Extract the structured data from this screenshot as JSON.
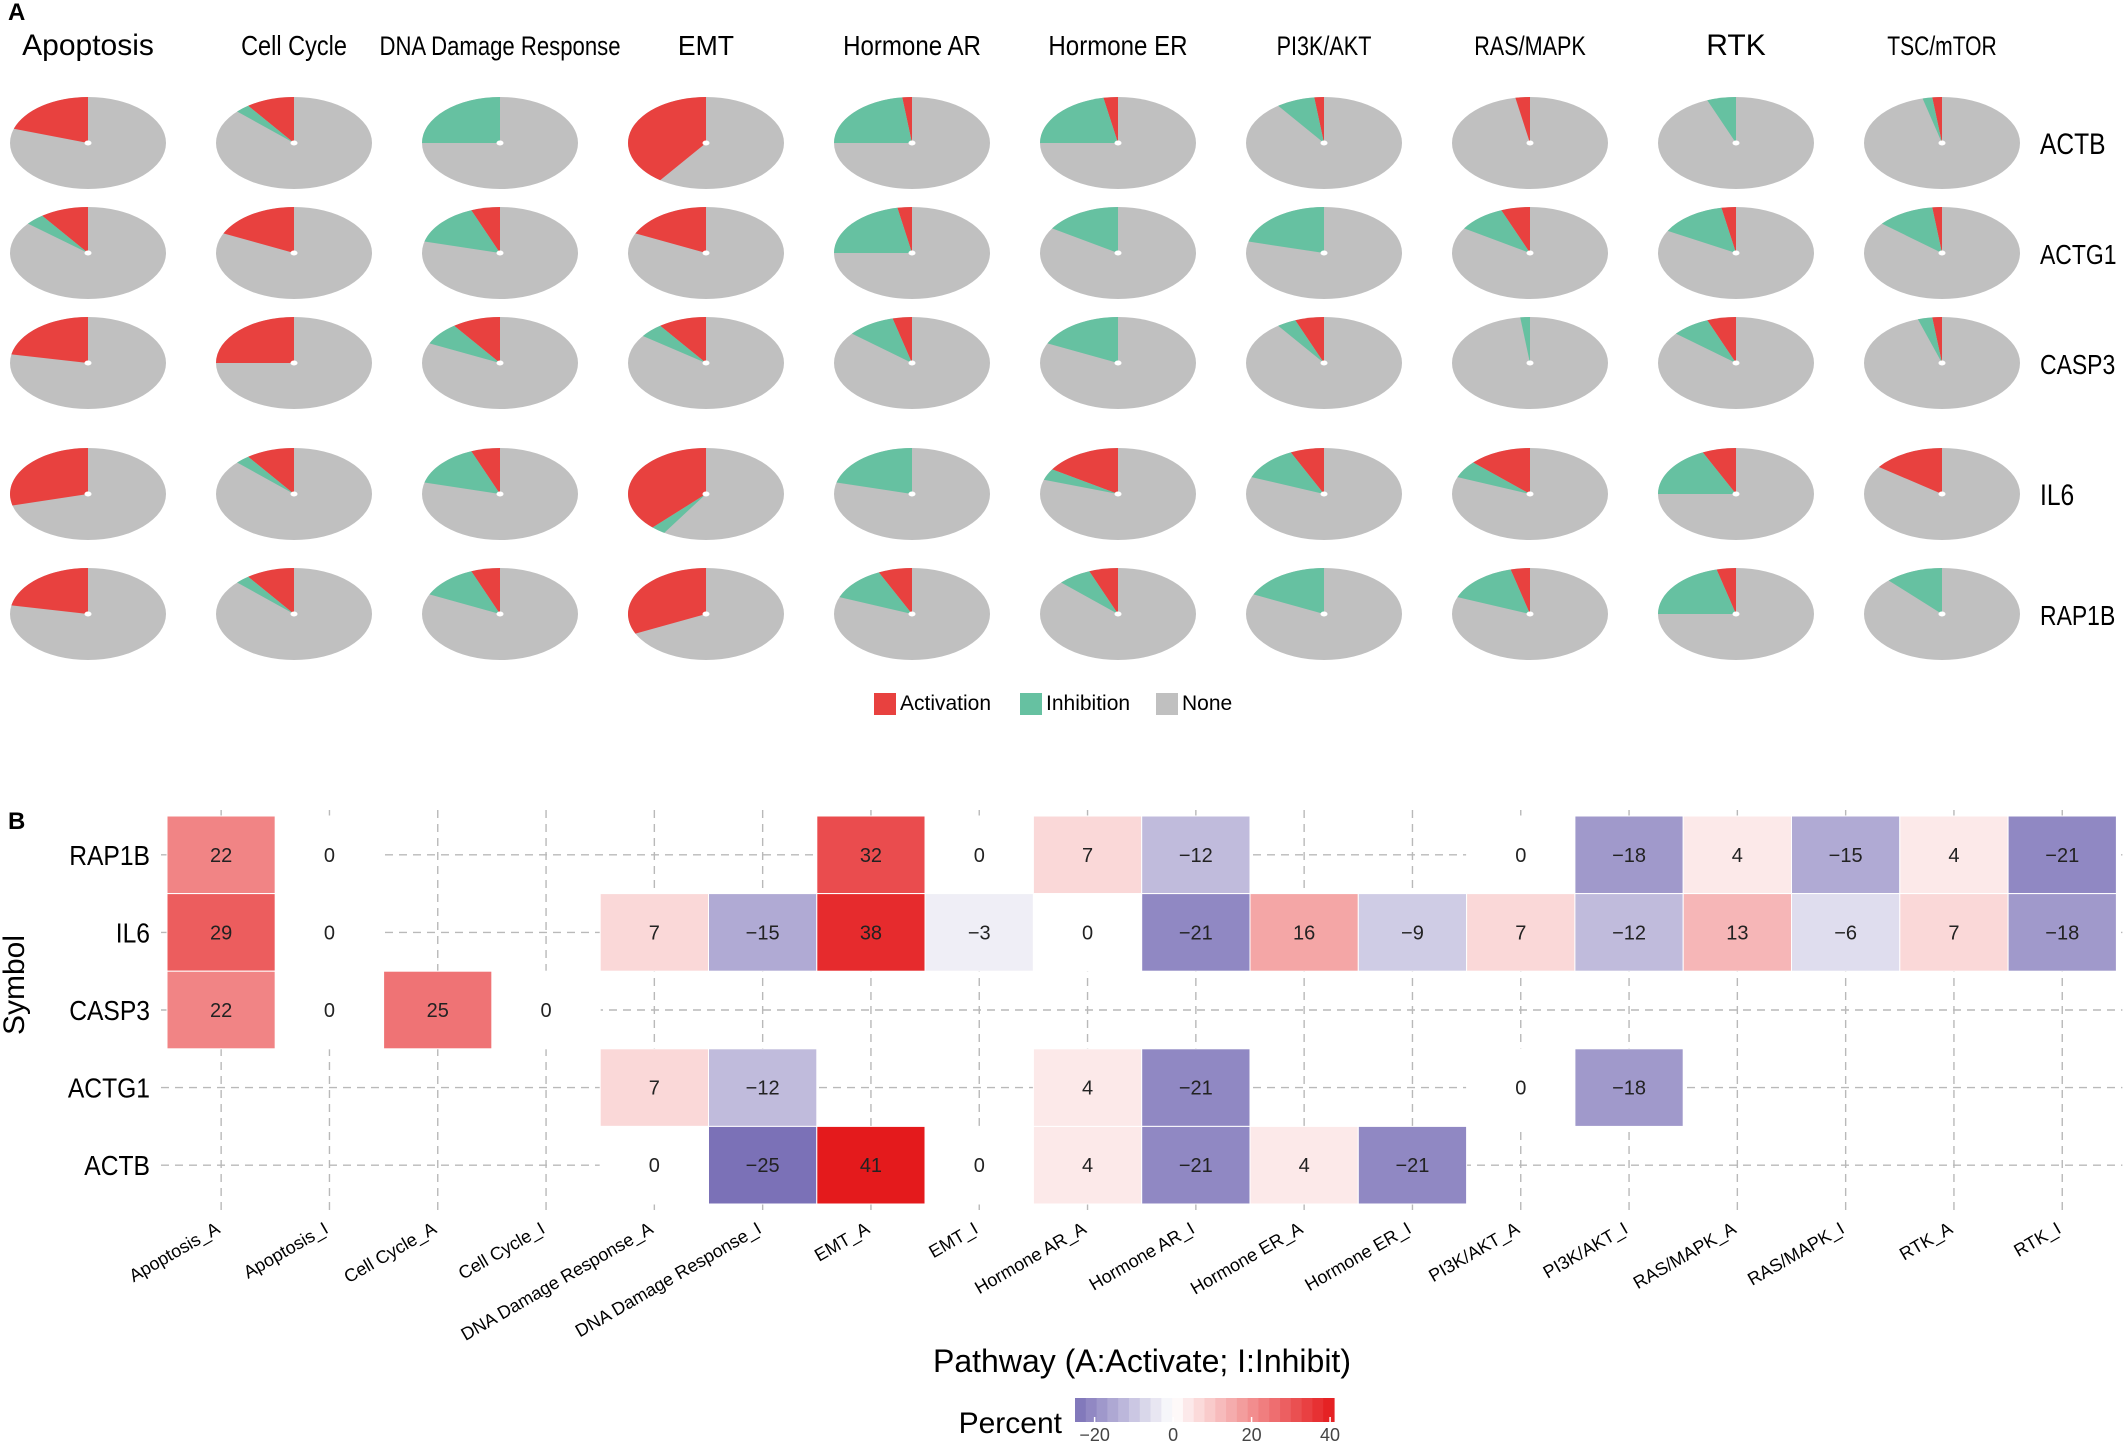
{
  "panel_a": {
    "label": "A"
  },
  "panel_b": {
    "label": "B"
  },
  "colors": {
    "activation": "#e8413f",
    "inhibition": "#66c1a1",
    "none": "#c0c0c0",
    "neg": "#7b71b7",
    "mid": "#ffffff",
    "pos": "#e41a1c",
    "grid": "#b9b9b9"
  },
  "chart_data": [
    {
      "type": "pie",
      "grid_of_pies": true,
      "columns": [
        "Apoptosis",
        "Cell Cycle",
        "DNA Damage Response",
        "EMT",
        "Hormone AR",
        "Hormone ER",
        "PI3K/AKT",
        "RAS/MAPK",
        "RTK",
        "TSC/mTOR"
      ],
      "rows": [
        "ACTB",
        "ACTG1",
        "CASP3",
        "IL6",
        "RAP1B"
      ],
      "legend": {
        "position": "bottom-center",
        "labels": [
          "Activation",
          "Inhibition",
          "None"
        ]
      },
      "slices": {
        "ACTB": [
          [
            0.2,
            0.0
          ],
          [
            0.1,
            0.03
          ],
          [
            0.0,
            0.25
          ],
          [
            0.4,
            0.0
          ],
          [
            0.02,
            0.23
          ],
          [
            0.03,
            0.22
          ],
          [
            0.02,
            0.08
          ],
          [
            0.03,
            0.0
          ],
          [
            0.0,
            0.06
          ],
          [
            0.02,
            0.02
          ]
        ],
        "ACTG1": [
          [
            0.1,
            0.04
          ],
          [
            0.18,
            0.0
          ],
          [
            0.06,
            0.15
          ],
          [
            0.18,
            0.0
          ],
          [
            0.03,
            0.22
          ],
          [
            0.0,
            0.16
          ],
          [
            0.0,
            0.21
          ],
          [
            0.06,
            0.1
          ],
          [
            0.03,
            0.14
          ],
          [
            0.02,
            0.12
          ]
        ],
        "CASP3": [
          [
            0.22,
            0.0
          ],
          [
            0.25,
            0.0
          ],
          [
            0.1,
            0.08
          ],
          [
            0.1,
            0.05
          ],
          [
            0.04,
            0.1
          ],
          [
            0.0,
            0.18
          ],
          [
            0.06,
            0.04
          ],
          [
            0.0,
            0.02
          ],
          [
            0.06,
            0.08
          ],
          [
            0.02,
            0.03
          ]
        ],
        "IL6": [
          [
            0.29,
            0.0
          ],
          [
            0.1,
            0.03
          ],
          [
            0.06,
            0.15
          ],
          [
            0.38,
            0.03
          ],
          [
            0.0,
            0.21
          ],
          [
            0.16,
            0.04
          ],
          [
            0.07,
            0.12
          ],
          [
            0.13,
            0.06
          ],
          [
            0.07,
            0.18
          ],
          [
            0.15,
            0.0
          ]
        ],
        "RAP1B": [
          [
            0.22,
            0.0
          ],
          [
            0.1,
            0.03
          ],
          [
            0.06,
            0.12
          ],
          [
            0.32,
            0.0
          ],
          [
            0.07,
            0.12
          ],
          [
            0.06,
            0.07
          ],
          [
            0.0,
            0.18
          ],
          [
            0.04,
            0.15
          ],
          [
            0.04,
            0.21
          ],
          [
            0.0,
            0.12
          ]
        ]
      }
    },
    {
      "type": "heatmap",
      "x": [
        "Apoptosis_A",
        "Apoptosis_I",
        "Cell Cycle_A",
        "Cell Cycle_I",
        "DNA Damage Response_A",
        "DNA Damage Response_I",
        "EMT_A",
        "EMT_I",
        "Hormone AR_A",
        "Hormone AR_I",
        "Hormone ER_A",
        "Hormone ER_I",
        "PI3K/AKT_A",
        "PI3K/AKT_I",
        "RAS/MAPK_A",
        "RAS/MAPK_I",
        "RTK_A",
        "RTK_I"
      ],
      "y": [
        "RAP1B",
        "IL6",
        "CASP3",
        "ACTG1",
        "ACTB"
      ],
      "values": [
        [
          22,
          0,
          null,
          null,
          null,
          null,
          32,
          0,
          7,
          -12,
          null,
          null,
          0,
          -18,
          4,
          -15,
          4,
          -21
        ],
        [
          29,
          0,
          null,
          null,
          7,
          -15,
          38,
          -3,
          0,
          -21,
          16,
          -9,
          7,
          -12,
          13,
          -6,
          7,
          -18
        ],
        [
          22,
          0,
          25,
          0,
          null,
          null,
          null,
          null,
          null,
          null,
          null,
          null,
          null,
          null,
          null,
          null,
          null,
          null
        ],
        [
          null,
          null,
          null,
          null,
          7,
          -12,
          null,
          null,
          4,
          -21,
          null,
          null,
          0,
          -18,
          null,
          null,
          null,
          null
        ],
        [
          null,
          null,
          null,
          null,
          0,
          -25,
          41,
          0,
          4,
          -21,
          4,
          -21,
          null,
          null,
          null,
          null,
          null,
          null
        ]
      ],
      "xlabel": "Pathway (A:Activate; I:Inhibit)",
      "ylabel": "Symbol",
      "colorbar": {
        "label": "Percent",
        "ticks": [
          "−20",
          "0",
          "20",
          "40"
        ],
        "tick_values": [
          -20,
          0,
          20,
          40
        ],
        "range": [
          -25,
          41
        ]
      },
      "grid": true,
      "legend_position": "bottom-center"
    }
  ]
}
